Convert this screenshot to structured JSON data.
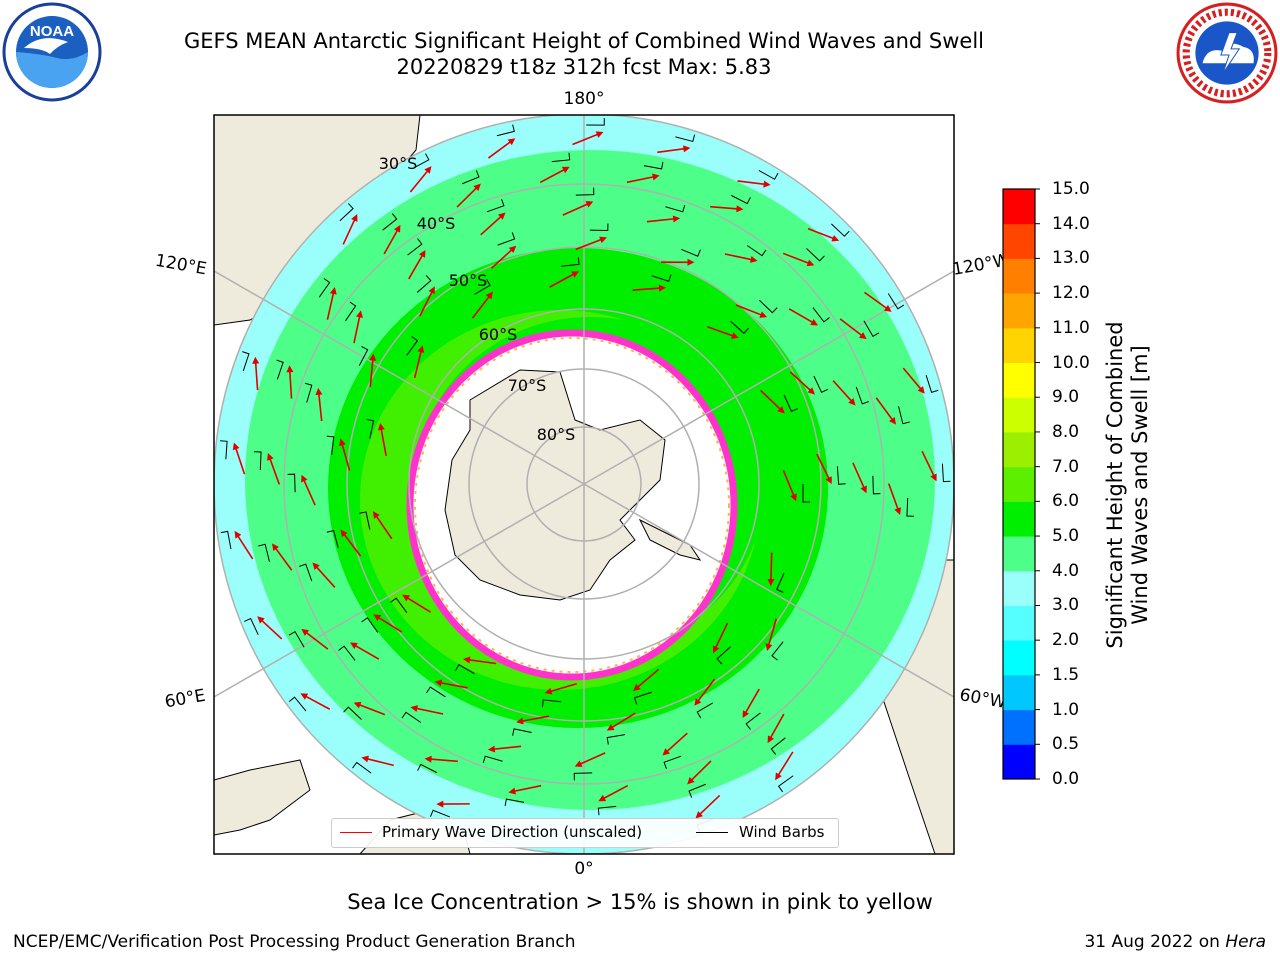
{
  "header": {
    "title_line1": "GEFS MEAN Antarctic Significant Height of Combined Wind Waves and Swell",
    "title_line2": "20220829 t18z 312h fcst   Max: 5.83"
  },
  "logos": {
    "left": "NOAA",
    "right": "NATIONAL WEATHER SERVICE"
  },
  "map": {
    "projection": "south-polar-stereographic",
    "meridian_labels": {
      "top": "180°",
      "bottom": "0°",
      "left_upper": "120°E",
      "left_lower": "60°E",
      "right_upper": "120°W",
      "right_lower": "60°W"
    },
    "parallel_labels": [
      "30°S",
      "40°S",
      "50°S",
      "60°S",
      "70°S",
      "80°S"
    ],
    "colors": {
      "land": "#efebdc",
      "ice_free_antarctic": "#ffffff",
      "sea_ice_edge": "#ff33cc",
      "wind_barb": "#000000",
      "wave_arrow": "#ff0000",
      "grid": "#b0b0b0"
    }
  },
  "legend": {
    "wave_direction": "Primary Wave Direction (unscaled)",
    "wind_barbs": "Wind Barbs"
  },
  "colorbar": {
    "label_line1": "Significant Height of Combined",
    "label_line2": "Wind Waves and Swell [m]",
    "ticks": [
      "0.0",
      "0.5",
      "1.0",
      "1.5",
      "2.0",
      "3.0",
      "4.0",
      "5.0",
      "6.0",
      "7.0",
      "8.0",
      "9.0",
      "10.0",
      "11.0",
      "12.0",
      "13.0",
      "14.0",
      "15.0"
    ],
    "colors": [
      "#0000ff",
      "#0070ff",
      "#00c8ff",
      "#00ffff",
      "#55ffff",
      "#9afffa",
      "#4dff88",
      "#00ee00",
      "#5cf000",
      "#9cef00",
      "#ccff00",
      "#ffff00",
      "#ffd400",
      "#ffa500",
      "#ff7f00",
      "#ff4500",
      "#ff0000"
    ]
  },
  "note": "Sea Ice Concentration > 15% is shown in pink to yellow",
  "footer": {
    "left": "NCEP/EMC/Verification Post Processing Product Generation Branch",
    "right_date": "31 Aug 2022 on",
    "right_machine": "Hera"
  }
}
